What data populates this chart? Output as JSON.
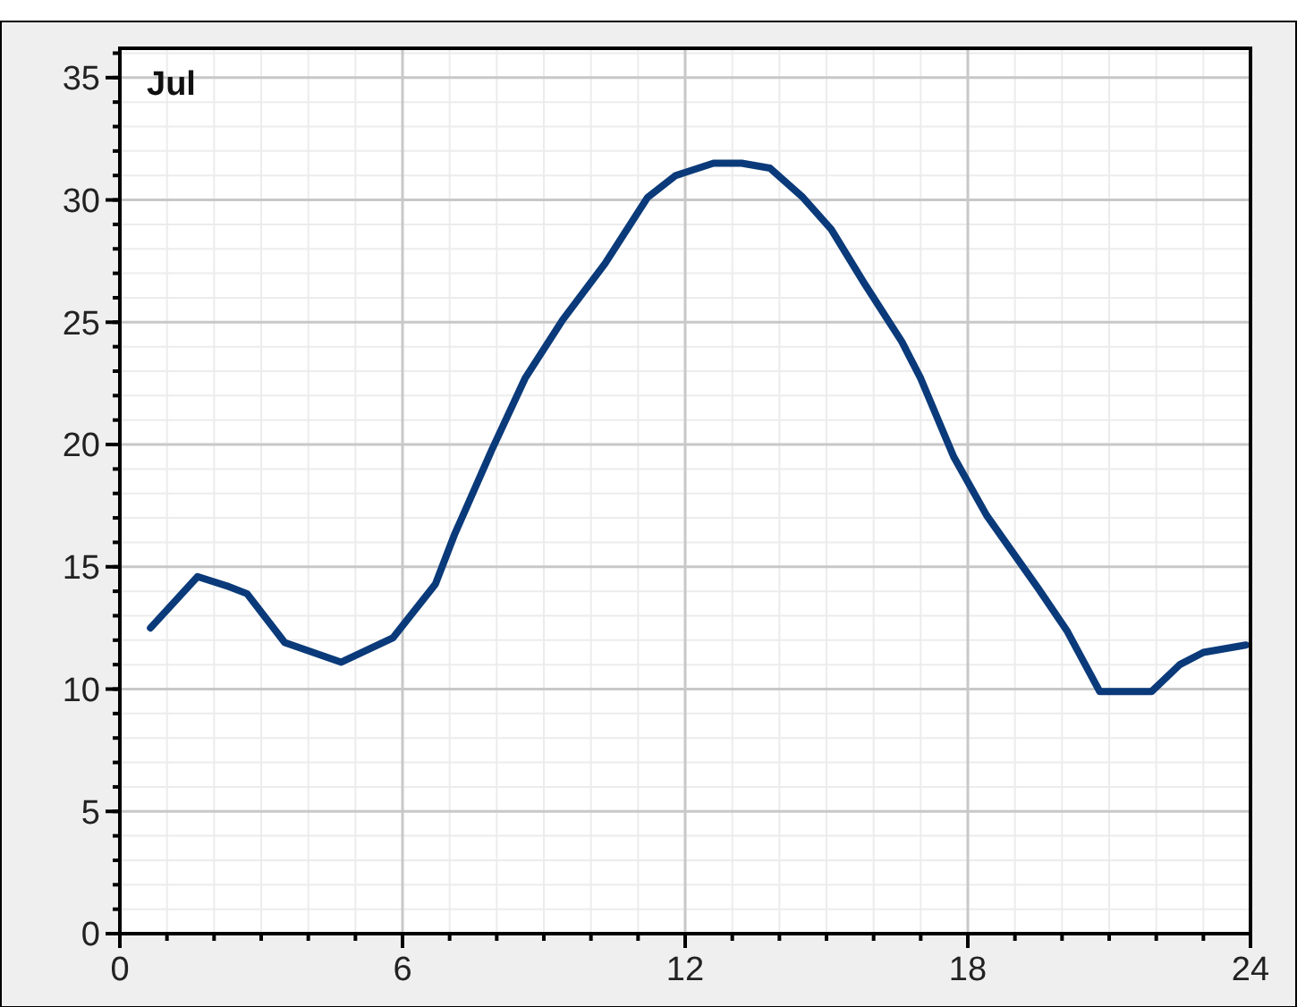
{
  "chart_data": {
    "type": "line",
    "title": "Jul",
    "x": [
      0.65,
      1.65,
      2.3,
      2.7,
      3.5,
      4.7,
      5.8,
      6.7,
      7.1,
      7.9,
      8.6,
      9.4,
      10.3,
      11.2,
      11.8,
      12.6,
      13.2,
      13.8,
      14.5,
      15.1,
      15.8,
      16.6,
      17.0,
      17.7,
      18.4,
      19.5,
      20.1,
      20.8,
      21.9,
      22.5,
      23.0,
      23.9
    ],
    "series": [
      {
        "color": "#0a3a7a",
        "values": [
          12.5,
          14.6,
          14.2,
          13.9,
          11.9,
          11.1,
          12.1,
          14.3,
          16.3,
          19.8,
          22.7,
          25.1,
          27.4,
          30.1,
          31.0,
          31.5,
          31.5,
          31.3,
          30.1,
          28.8,
          26.6,
          24.2,
          22.7,
          19.5,
          17.1,
          14.1,
          12.4,
          9.9,
          9.9,
          11.0,
          11.5,
          11.8
        ]
      }
    ],
    "xlim": [
      0,
      24
    ],
    "xticks": [
      0,
      6,
      12,
      18,
      24
    ],
    "ylim": [
      0,
      36.2
    ],
    "yticks": [
      0,
      5,
      10,
      15,
      20,
      25,
      30,
      35
    ],
    "grid": true,
    "line_style": "solid",
    "marker": "none"
  }
}
